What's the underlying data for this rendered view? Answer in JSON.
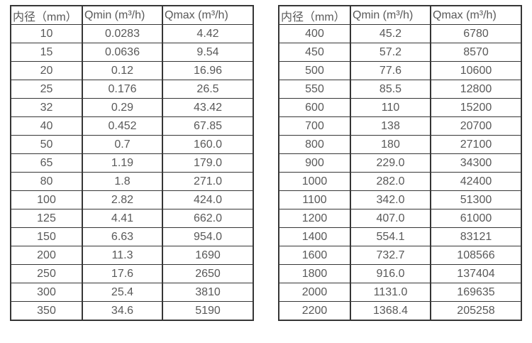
{
  "colors": {
    "border": "#363636",
    "text": "#595959",
    "background": "#ffffff"
  },
  "chart_data": [
    {
      "type": "table",
      "title": "",
      "headers": [
        "内径（mm）",
        "Qmin (m³/h)",
        "Qmax (m³/h)"
      ],
      "rows": [
        [
          "10",
          "0.0283",
          "4.42"
        ],
        [
          "15",
          "0.0636",
          "9.54"
        ],
        [
          "20",
          "0.12",
          "16.96"
        ],
        [
          "25",
          "0.176",
          "26.5"
        ],
        [
          "32",
          "0.29",
          "43.42"
        ],
        [
          "40",
          "0.452",
          "67.85"
        ],
        [
          "50",
          "0.7",
          "160.0"
        ],
        [
          "65",
          "1.19",
          "179.0"
        ],
        [
          "80",
          "1.8",
          "271.0"
        ],
        [
          "100",
          "2.82",
          "424.0"
        ],
        [
          "125",
          "4.41",
          "662.0"
        ],
        [
          "150",
          "6.63",
          "954.0"
        ],
        [
          "200",
          "11.3",
          "1690"
        ],
        [
          "250",
          "17.6",
          "2650"
        ],
        [
          "300",
          "25.4",
          "3810"
        ],
        [
          "350",
          "34.6",
          "5190"
        ]
      ]
    },
    {
      "type": "table",
      "title": "",
      "headers": [
        "内径（mm）",
        "Qmin (m³/h)",
        "Qmax (m³/h)"
      ],
      "rows": [
        [
          "400",
          "45.2",
          "6780"
        ],
        [
          "450",
          "57.2",
          "8570"
        ],
        [
          "500",
          "77.6",
          "10600"
        ],
        [
          "550",
          "85.5",
          "12800"
        ],
        [
          "600",
          "110",
          "15200"
        ],
        [
          "700",
          "138",
          "20700"
        ],
        [
          "800",
          "180",
          "27100"
        ],
        [
          "900",
          "229.0",
          "34300"
        ],
        [
          "1000",
          "282.0",
          "42400"
        ],
        [
          "1100",
          "342.0",
          "51300"
        ],
        [
          "1200",
          "407.0",
          "61000"
        ],
        [
          "1400",
          "554.1",
          "83121"
        ],
        [
          "1600",
          "732.7",
          "108566"
        ],
        [
          "1800",
          "916.0",
          "137404"
        ],
        [
          "2000",
          "1131.0",
          "169635"
        ],
        [
          "2200",
          "1368.4",
          "205258"
        ]
      ]
    }
  ]
}
